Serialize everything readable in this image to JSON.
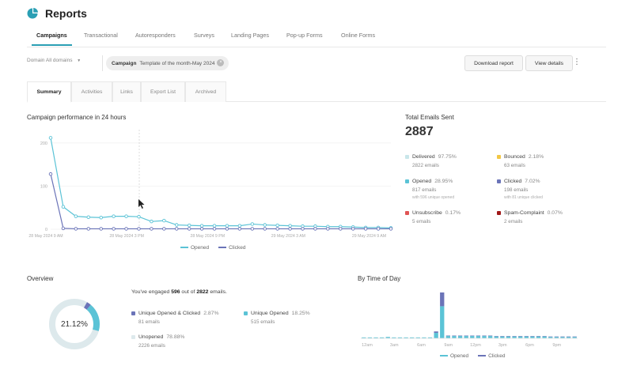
{
  "header": {
    "title": "Reports",
    "icon": "pie-chart-icon"
  },
  "tabs": [
    {
      "label": "Campaigns",
      "active": true
    },
    {
      "label": "Transactional"
    },
    {
      "label": "Autoresponders"
    },
    {
      "label": "Surveys"
    },
    {
      "label": "Landing Pages"
    },
    {
      "label": "Pop-up Forms"
    },
    {
      "label": "Online Forms"
    }
  ],
  "filters": {
    "domain_label": "Domain",
    "domain_value": "All domains",
    "campaign_label": "Campaign",
    "campaign_value": "Template of the month-May 2024",
    "download_label": "Download report",
    "details_label": "View details",
    "more_icon": "kebab-menu-icon"
  },
  "subtabs": [
    {
      "label": "Summary",
      "active": true
    },
    {
      "label": "Activities"
    },
    {
      "label": "Links"
    },
    {
      "label": "Export List"
    },
    {
      "label": "Archived"
    }
  ],
  "performance": {
    "title": "Campaign performance in 24 hours",
    "legend_opened": "Opened",
    "legend_clicked": "Clicked"
  },
  "totals": {
    "label": "Total Emails Sent",
    "value": "2887",
    "stats": [
      {
        "label": "Delivered",
        "pct": "97.75%",
        "sub": "2822 emails",
        "color": "#c9e6ea"
      },
      {
        "label": "Bounced",
        "pct": "2.18%",
        "sub": "63 emails",
        "color": "#f2c744"
      },
      {
        "label": "Opened",
        "pct": "28.95%",
        "sub": "817 emails",
        "sub2": "with 596 unique opened",
        "color": "#5bc3d6"
      },
      {
        "label": "Clicked",
        "pct": "7.02%",
        "sub": "198 emails",
        "sub2": "with 81 unique clicked",
        "color": "#6b74b8"
      },
      {
        "label": "Unsubscribe",
        "pct": "0.17%",
        "sub": "5 emails",
        "color": "#e05555"
      },
      {
        "label": "Spam-Complaint",
        "pct": "0.07%",
        "sub": "2 emails",
        "color": "#a01818"
      }
    ]
  },
  "overview": {
    "title": "Overview",
    "engaged_prefix": "You've engaged",
    "engaged_count": "596",
    "engaged_mid": "out of",
    "engaged_total": "2822",
    "engaged_suffix": "emails.",
    "donut_center": "21.12%",
    "segments": [
      {
        "label": "Unique Opened & Clicked",
        "pct": "2.87%",
        "sub": "81 emails",
        "color": "#6b74b8",
        "value": 2.87
      },
      {
        "label": "Unique Opened",
        "pct": "18.25%",
        "sub": "515 emails",
        "color": "#5bc3d6",
        "value": 18.25
      },
      {
        "label": "Unopened",
        "pct": "78.88%",
        "sub": "2226 emails",
        "color": "#dde9ec",
        "value": 78.88
      }
    ]
  },
  "time_of_day": {
    "title": "By Time of Day",
    "legend_opened": "Opened",
    "legend_clicked": "Clicked"
  },
  "chart_data": [
    {
      "type": "line",
      "title": "Campaign performance in 24 hours",
      "x_tick_labels": [
        "28 May 2024 9 AM",
        "28 May 2024 3 PM",
        "28 May 2024 9 PM",
        "29 May 2024 3 AM",
        "29 May 2024 9 AM"
      ],
      "y_tick_labels": [
        "0",
        "100",
        "200"
      ],
      "ylim": [
        0,
        220
      ],
      "grid": true,
      "legend": "bottom",
      "series": [
        {
          "name": "Opened",
          "color": "#5bc3d6",
          "values": [
            212,
            52,
            30,
            28,
            27,
            30,
            30,
            29,
            18,
            20,
            10,
            9,
            8,
            8,
            8,
            8,
            12,
            10,
            9,
            8,
            7,
            7,
            6,
            6,
            5,
            4,
            4,
            3
          ]
        },
        {
          "name": "Clicked",
          "color": "#6b74b8",
          "values": [
            128,
            2,
            1,
            1,
            1,
            1,
            1,
            1,
            1,
            1,
            1,
            1,
            1,
            1,
            1,
            1,
            1,
            1,
            1,
            1,
            1,
            1,
            1,
            1,
            1,
            1,
            1,
            1
          ]
        }
      ]
    },
    {
      "type": "bar",
      "title": "By Time of Day",
      "x_tick_labels": [
        "12am",
        "3am",
        "6am",
        "9am",
        "12pm",
        "3pm",
        "6pm",
        "9pm"
      ],
      "legend": "bottom",
      "series": [
        {
          "name": "Opened",
          "color": "#5bc3d6",
          "values": [
            2,
            2,
            2,
            2,
            3,
            2,
            2,
            2,
            2,
            2,
            2,
            2,
            12,
            70,
            5,
            5,
            5,
            5,
            5,
            5,
            5,
            5,
            4,
            4,
            4,
            4,
            4,
            4,
            4,
            4,
            4,
            3,
            3,
            3,
            3,
            3
          ]
        },
        {
          "name": "Clicked",
          "color": "#6b74b8",
          "values": [
            0,
            0,
            0,
            0,
            0,
            0,
            0,
            0,
            0,
            0,
            0,
            0,
            3,
            30,
            1,
            1,
            1,
            1,
            1,
            1,
            1,
            1,
            1,
            1,
            1,
            1,
            1,
            1,
            1,
            1,
            1,
            1,
            1,
            1,
            1,
            1
          ]
        }
      ]
    }
  ]
}
